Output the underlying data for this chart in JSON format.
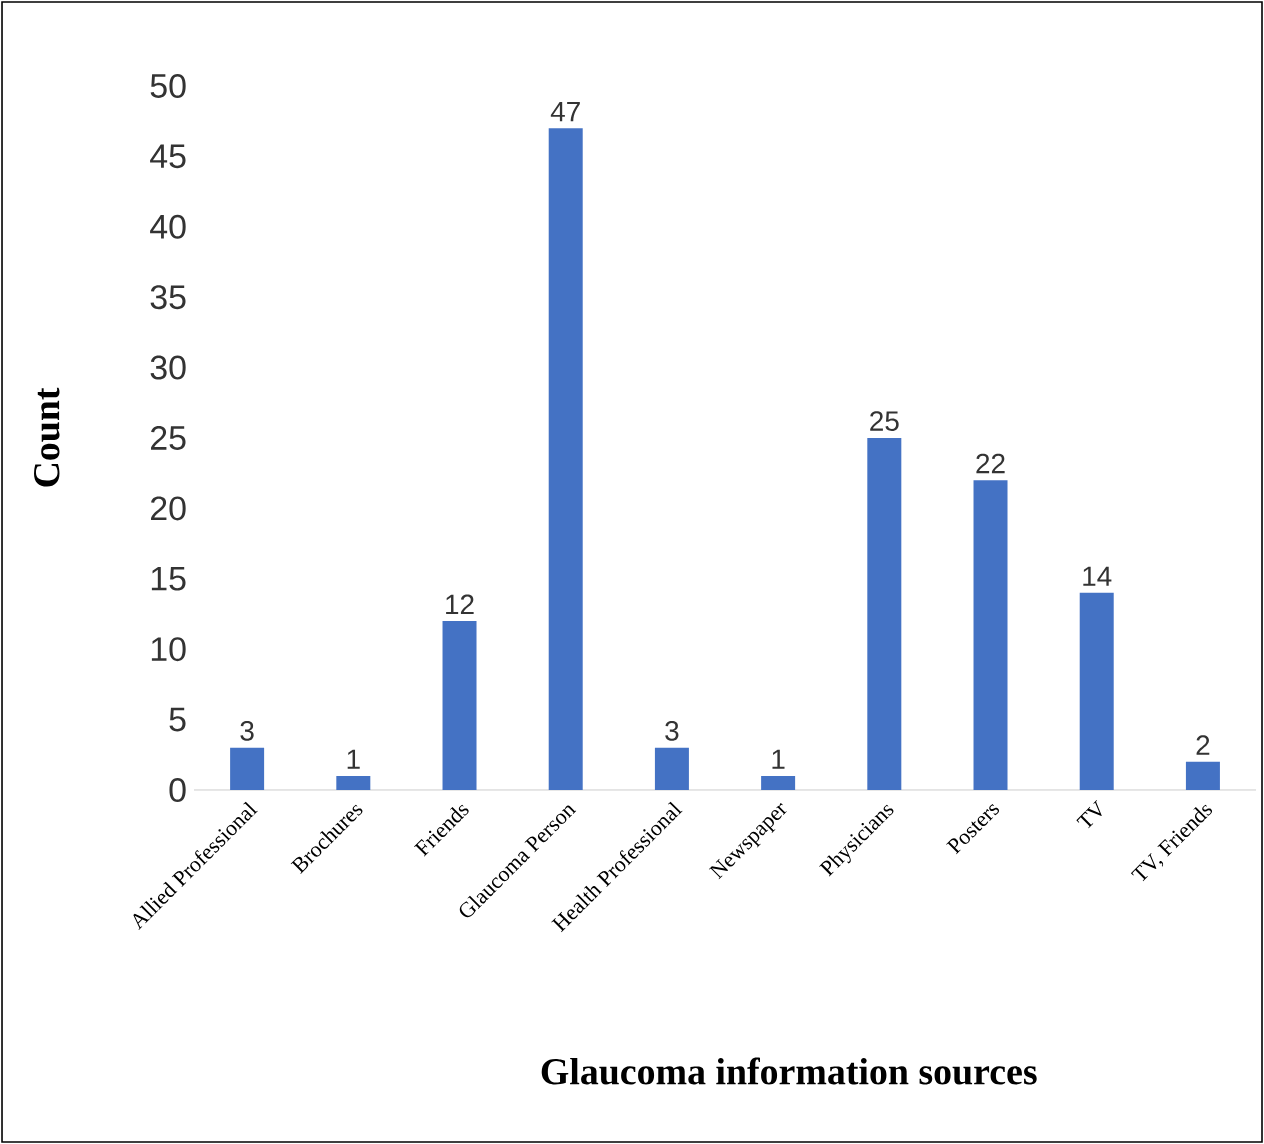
{
  "chart_data": {
    "type": "bar",
    "xlabel": "Glaucoma information sources",
    "ylabel": "Count",
    "categories": [
      "Allied Professional",
      "Brochures",
      "Friends",
      "Glaucoma Person",
      "Health Professional",
      "Newspaper",
      "Physicians",
      "Posters",
      "TV",
      "TV, Friends"
    ],
    "values": [
      3,
      1,
      12,
      47,
      3,
      1,
      25,
      22,
      14,
      2
    ],
    "color": "#4472c4",
    "ylim": [
      0,
      50
    ],
    "yticks": [
      0,
      5,
      10,
      15,
      20,
      25,
      30,
      35,
      40,
      45,
      50
    ],
    "data_labels": true,
    "grid": false
  }
}
